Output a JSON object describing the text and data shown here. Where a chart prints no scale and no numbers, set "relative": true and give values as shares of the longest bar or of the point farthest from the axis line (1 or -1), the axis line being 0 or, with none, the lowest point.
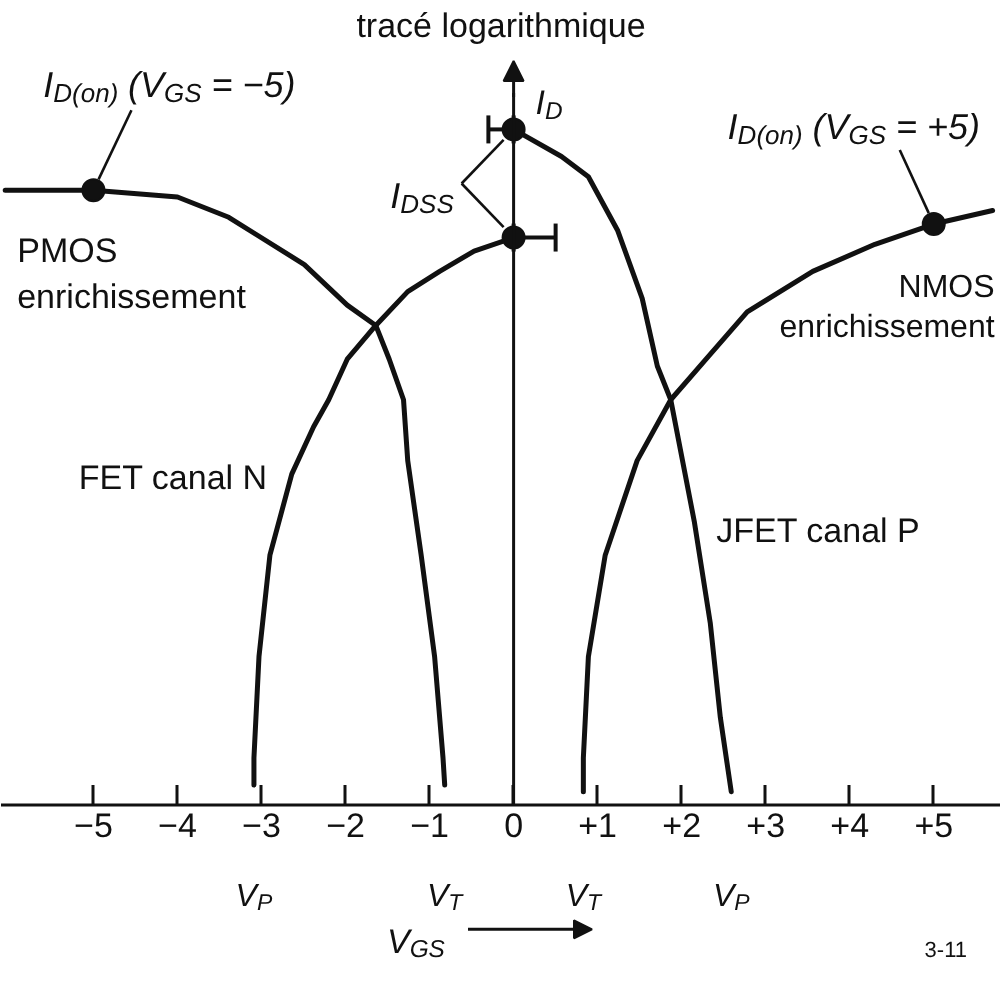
{
  "chart_data": {
    "type": "line",
    "relative": true,
    "title": "tracé logarithmique",
    "xlabel": "V$_{GS}$",
    "xlim": [
      -6.1,
      5.8
    ],
    "xticks": [
      {
        "value": -5,
        "label": "−5"
      },
      {
        "value": -4,
        "label": "−4"
      },
      {
        "value": -3,
        "label": "−3"
      },
      {
        "value": -2,
        "label": "−2"
      },
      {
        "value": -1,
        "label": "−1"
      },
      0,
      {
        "value": 1,
        "label": "+1"
      },
      {
        "value": 2,
        "label": "+2"
      },
      {
        "value": 3,
        "label": "+3"
      },
      {
        "value": 4,
        "label": "+4"
      },
      {
        "value": 5,
        "label": "+5"
      }
    ],
    "tick_labels": "x",
    "grid": false,
    "ref_lines": [
      {
        "axis": "x",
        "value": 0,
        "label": "I$_{D}$"
      }
    ],
    "series": [
      {
        "name": "PMOS enrichissement",
        "color": "#111111",
        "x": [
          -6.05,
          -5,
          -4,
          -3.39,
          -2.49,
          -1.98,
          -1.64,
          -1.48,
          -1.31,
          -1.26,
          -1.1,
          -0.94,
          -0.84,
          -0.82
        ],
        "values": [
          0.91,
          0.91,
          0.9,
          0.87,
          0.8,
          0.74,
          0.71,
          0.66,
          0.6,
          0.51,
          0.37,
          0.22,
          0.07,
          0.03
        ]
      },
      {
        "name": "FET canal N",
        "color": "#111111",
        "x": [
          -3.09,
          -3.09,
          -3.03,
          -2.9,
          -2.64,
          -2.38,
          -2.2,
          -1.98,
          -1.64,
          -1.26,
          -0.88,
          -0.47,
          0
        ],
        "values": [
          0.03,
          0.07,
          0.22,
          0.37,
          0.49,
          0.56,
          0.6,
          0.66,
          0.71,
          0.76,
          0.79,
          0.82,
          0.84
        ]
      },
      {
        "name": "JFET canal P",
        "color": "#111111",
        "x": [
          0,
          0.57,
          0.89,
          1.24,
          1.53,
          1.71,
          1.87,
          2.15,
          2.34,
          2.46,
          2.59
        ],
        "values": [
          1,
          0.96,
          0.93,
          0.85,
          0.75,
          0.65,
          0.6,
          0.42,
          0.27,
          0.13,
          0.02
        ]
      },
      {
        "name": "NMOS enrichissement",
        "color": "#111111",
        "x": [
          0.83,
          0.83,
          0.89,
          1.09,
          1.47,
          1.87,
          2.29,
          2.78,
          3.56,
          4.3,
          5,
          5.7
        ],
        "values": [
          0.02,
          0.07,
          0.22,
          0.37,
          0.51,
          0.6,
          0.66,
          0.73,
          0.79,
          0.83,
          0.86,
          0.88
        ]
      },
      {
        "type": "scatter",
        "marker": "circle",
        "color": "#111111",
        "x": [
          -5,
          0,
          0,
          5
        ],
        "values": [
          0.91,
          1,
          0.84,
          0.86
        ],
        "xerrors": [
          null,
          [
            -0.3,
            0
          ],
          [
            0,
            0.5
          ],
          null
        ]
      }
    ],
    "annotations": [
      {
        "text": "I$_{D(on)}$ (V$_{GS}$ = −5)",
        "x": -5,
        "y": 0.91
      },
      {
        "text": "I$_{DSS}$",
        "x": 0
      },
      {
        "text": "I$_{D(on)}$ (V$_{GS}$ = +5)",
        "x": 5,
        "y": 0.86
      },
      "V$_{P}$",
      "V$_{T}$",
      "V$_{T}$",
      "V$_{P}$",
      "3-11"
    ]
  }
}
